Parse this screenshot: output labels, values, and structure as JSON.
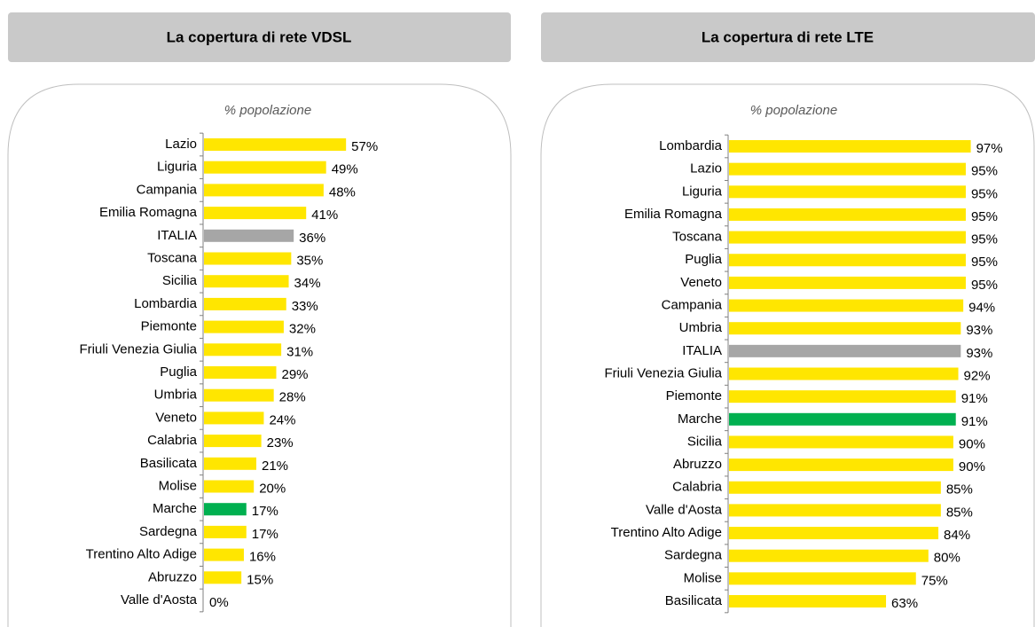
{
  "chart_data": [
    {
      "type": "bar",
      "orientation": "horizontal",
      "title": "La copertura di rete VDSL",
      "subtitle": "% popolazione",
      "categories": [
        "Lazio",
        "Liguria",
        "Campania",
        "Emilia Romagna",
        "ITALIA",
        "Toscana",
        "Sicilia",
        "Lombardia",
        "Piemonte",
        "Friuli Venezia Giulia",
        "Puglia",
        "Umbria",
        "Veneto",
        "Calabria",
        "Basilicata",
        "Molise",
        "Marche",
        "Sardegna",
        "Trentino Alto Adige",
        "Abruzzo",
        "Valle d'Aosta"
      ],
      "values": [
        57,
        49,
        48,
        41,
        36,
        35,
        34,
        33,
        32,
        31,
        29,
        28,
        24,
        23,
        21,
        20,
        17,
        17,
        16,
        15,
        0
      ],
      "value_labels": [
        "57%",
        "49%",
        "48%",
        "41%",
        "36%",
        "35%",
        "34%",
        "33%",
        "32%",
        "31%",
        "29%",
        "28%",
        "24%",
        "23%",
        "21%",
        "20%",
        "17%",
        "17%",
        "16%",
        "15%",
        "0%"
      ],
      "colors": [
        "#ffe600",
        "#ffe600",
        "#ffe600",
        "#ffe600",
        "#a6a6a6",
        "#ffe600",
        "#ffe600",
        "#ffe600",
        "#ffe600",
        "#ffe600",
        "#ffe600",
        "#ffe600",
        "#ffe600",
        "#ffe600",
        "#ffe600",
        "#ffe600",
        "#00b050",
        "#ffe600",
        "#ffe600",
        "#ffe600",
        "#ffe600"
      ]
    },
    {
      "type": "bar",
      "orientation": "horizontal",
      "title": "La copertura di rete LTE",
      "subtitle": "% popolazione",
      "categories": [
        "Lombardia",
        "Lazio",
        "Liguria",
        "Emilia Romagna",
        "Toscana",
        "Puglia",
        "Veneto",
        "Campania",
        "Umbria",
        "ITALIA",
        "Friuli Venezia Giulia",
        "Piemonte",
        "Marche",
        "Sicilia",
        "Abruzzo",
        "Calabria",
        "Valle d'Aosta",
        "Trentino Alto Adige",
        "Sardegna",
        "Molise",
        "Basilicata"
      ],
      "values": [
        97,
        95,
        95,
        95,
        95,
        95,
        95,
        94,
        93,
        93,
        92,
        91,
        91,
        90,
        90,
        85,
        85,
        84,
        80,
        75,
        63
      ],
      "value_labels": [
        "97%",
        "95%",
        "95%",
        "95%",
        "95%",
        "95%",
        "95%",
        "94%",
        "93%",
        "93%",
        "92%",
        "91%",
        "91%",
        "90%",
        "90%",
        "85%",
        "85%",
        "84%",
        "80%",
        "75%",
        "63%"
      ],
      "colors": [
        "#ffe600",
        "#ffe600",
        "#ffe600",
        "#ffe600",
        "#ffe600",
        "#ffe600",
        "#ffe600",
        "#ffe600",
        "#ffe600",
        "#a6a6a6",
        "#ffe600",
        "#ffe600",
        "#00b050",
        "#ffe600",
        "#ffe600",
        "#ffe600",
        "#ffe600",
        "#ffe600",
        "#ffe600",
        "#ffe600",
        "#ffe600"
      ]
    }
  ]
}
